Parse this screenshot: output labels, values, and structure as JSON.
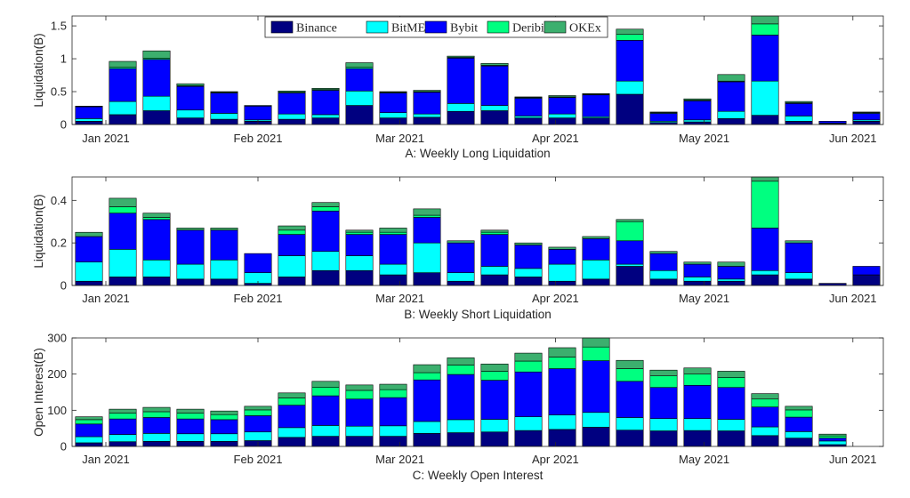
{
  "figure": {
    "ylabel": "Liquidation(B)",
    "legend": [
      "Binance",
      "BitMEX",
      "Bybit",
      "Deribit",
      "OKEx"
    ]
  },
  "colors": {
    "Binance": "#000080",
    "BitMEX": "#00ffff",
    "Bybit": "#0000ff",
    "Deribit": "#00ff80",
    "OKEx": "#3caf6e"
  },
  "chart_data": [
    {
      "type": "bar",
      "stacked": true,
      "title": "A: Weekly  Long Liquidation",
      "ylabel": "Liquidation(B)",
      "ylim": [
        0,
        1.65
      ],
      "yticks": [
        0,
        0.5,
        1,
        1.5
      ],
      "ytick_labels": [
        "0",
        "0.5",
        "1",
        "1.5"
      ],
      "xtick_labels": [
        "Jan 2021",
        "Feb 2021",
        "Mar 2021",
        "Apr 2021",
        "May 2021",
        "Jun 2021"
      ],
      "xtick_positions": [
        1.5,
        6.0,
        10.2,
        14.8,
        19.2,
        23.6
      ],
      "legend": [
        "Binance",
        "BitMEX",
        "Bybit",
        "Deribit",
        "OKEx"
      ],
      "legend_location": "top-center",
      "grid": false,
      "x": [
        1,
        2,
        3,
        4,
        5,
        6,
        7,
        8,
        9,
        10,
        11,
        12,
        13,
        14,
        15,
        16,
        17,
        18,
        19,
        20,
        21,
        22,
        23,
        24
      ],
      "series": [
        {
          "name": "Binance",
          "values": [
            0.05,
            0.15,
            0.21,
            0.1,
            0.08,
            0.05,
            0.08,
            0.1,
            0.29,
            0.1,
            0.11,
            0.2,
            0.21,
            0.1,
            0.1,
            0.1,
            0.46,
            0.03,
            0.04,
            0.09,
            0.14,
            0.05,
            0.01,
            0.05
          ]
        },
        {
          "name": "BitMEX",
          "values": [
            0.04,
            0.2,
            0.22,
            0.12,
            0.09,
            0.02,
            0.08,
            0.05,
            0.22,
            0.08,
            0.05,
            0.12,
            0.08,
            0.03,
            0.06,
            0.02,
            0.2,
            0.02,
            0.03,
            0.11,
            0.52,
            0.08,
            0.01,
            0.02
          ]
        },
        {
          "name": "Bybit",
          "values": [
            0.18,
            0.5,
            0.56,
            0.36,
            0.31,
            0.21,
            0.32,
            0.37,
            0.34,
            0.3,
            0.33,
            0.69,
            0.6,
            0.27,
            0.25,
            0.33,
            0.62,
            0.12,
            0.29,
            0.45,
            0.7,
            0.19,
            0.03,
            0.1
          ]
        },
        {
          "name": "Deribit",
          "values": [
            0.0,
            0.02,
            0.02,
            0.01,
            0.01,
            0.0,
            0.01,
            0.01,
            0.02,
            0.01,
            0.01,
            0.01,
            0.01,
            0.01,
            0.01,
            0.01,
            0.09,
            0.01,
            0.01,
            0.01,
            0.17,
            0.01,
            0.0,
            0.01
          ]
        },
        {
          "name": "OKEx",
          "values": [
            0.01,
            0.09,
            0.11,
            0.03,
            0.01,
            0.01,
            0.02,
            0.02,
            0.07,
            0.01,
            0.02,
            0.02,
            0.03,
            0.01,
            0.02,
            0.01,
            0.08,
            0.01,
            0.02,
            0.1,
            0.2,
            0.02,
            0.0,
            0.01
          ]
        }
      ]
    },
    {
      "type": "bar",
      "stacked": true,
      "title": "B: Weekly  Short Liquidation",
      "ylabel": "Liquidation(B)",
      "ylim": [
        0,
        0.51
      ],
      "yticks": [
        0,
        0.2,
        0.4
      ],
      "ytick_labels": [
        "0",
        "0.2",
        "0.4"
      ],
      "xtick_labels": [
        "Jan 2021",
        "Feb 2021",
        "Mar 2021",
        "Apr 2021",
        "May 2021",
        "Jun 2021"
      ],
      "xtick_positions": [
        1.5,
        6.0,
        10.2,
        14.8,
        19.2,
        23.6
      ],
      "grid": false,
      "x": [
        1,
        2,
        3,
        4,
        5,
        6,
        7,
        8,
        9,
        10,
        11,
        12,
        13,
        14,
        15,
        16,
        17,
        18,
        19,
        20,
        21,
        22,
        23,
        24
      ],
      "series": [
        {
          "name": "Binance",
          "values": [
            0.02,
            0.04,
            0.04,
            0.03,
            0.03,
            0.01,
            0.04,
            0.07,
            0.07,
            0.05,
            0.06,
            0.02,
            0.05,
            0.04,
            0.02,
            0.03,
            0.09,
            0.03,
            0.02,
            0.02,
            0.05,
            0.03,
            0.01,
            0.05
          ]
        },
        {
          "name": "BitMEX",
          "values": [
            0.09,
            0.13,
            0.08,
            0.07,
            0.09,
            0.05,
            0.1,
            0.09,
            0.07,
            0.05,
            0.14,
            0.04,
            0.04,
            0.04,
            0.08,
            0.09,
            0.01,
            0.04,
            0.02,
            0.01,
            0.02,
            0.03,
            0.0,
            0.0
          ]
        },
        {
          "name": "Bybit",
          "values": [
            0.12,
            0.17,
            0.19,
            0.16,
            0.14,
            0.09,
            0.1,
            0.19,
            0.1,
            0.14,
            0.12,
            0.14,
            0.15,
            0.11,
            0.07,
            0.1,
            0.11,
            0.08,
            0.06,
            0.06,
            0.2,
            0.14,
            0.0,
            0.04
          ]
        },
        {
          "name": "Deribit",
          "values": [
            0.0,
            0.03,
            0.01,
            0.0,
            0.0,
            0.0,
            0.02,
            0.02,
            0.01,
            0.01,
            0.01,
            0.0,
            0.01,
            0.0,
            0.0,
            0.0,
            0.09,
            0.0,
            0.0,
            0.0,
            0.22,
            0.0,
            0.0,
            0.0
          ]
        },
        {
          "name": "OKEx",
          "values": [
            0.02,
            0.04,
            0.02,
            0.01,
            0.01,
            0.0,
            0.02,
            0.02,
            0.01,
            0.02,
            0.03,
            0.01,
            0.01,
            0.01,
            0.01,
            0.01,
            0.01,
            0.01,
            0.01,
            0.02,
            0.05,
            0.01,
            0.0,
            0.0
          ]
        }
      ]
    },
    {
      "type": "bar",
      "stacked": true,
      "title": "C: Weekly  Open Interest",
      "ylabel": "Open Interest(B)",
      "ylim": [
        0,
        300
      ],
      "yticks": [
        0,
        100,
        200,
        300
      ],
      "ytick_labels": [
        "0",
        "100",
        "200",
        "300"
      ],
      "xtick_labels": [
        "Jan 2021",
        "Feb 2021",
        "Mar 2021",
        "Apr 2021",
        "May 2021",
        "Jun 2021"
      ],
      "xtick_positions": [
        1.5,
        6.0,
        10.2,
        14.8,
        19.2,
        23.6
      ],
      "grid": false,
      "x": [
        1,
        2,
        3,
        4,
        5,
        6,
        7,
        8,
        9,
        10,
        11,
        12,
        13,
        14,
        15,
        16,
        17,
        18,
        19,
        20,
        21,
        22,
        23,
        24
      ],
      "series": [
        {
          "name": "Binance",
          "values": [
            10,
            13,
            14,
            14,
            14,
            16,
            25,
            28,
            28,
            28,
            36,
            38,
            40,
            44,
            47,
            53,
            45,
            43,
            44,
            43,
            30,
            23,
            5,
            0
          ]
        },
        {
          "name": "BitMEX",
          "values": [
            17,
            20,
            22,
            21,
            21,
            24,
            27,
            30,
            28,
            29,
            33,
            36,
            35,
            38,
            40,
            41,
            35,
            34,
            33,
            32,
            24,
            18,
            10,
            0
          ]
        },
        {
          "name": "Bybit",
          "values": [
            35,
            43,
            44,
            41,
            39,
            45,
            62,
            82,
            75,
            78,
            115,
            125,
            108,
            124,
            128,
            143,
            100,
            86,
            92,
            88,
            55,
            40,
            8,
            0
          ]
        },
        {
          "name": "Deribit",
          "values": [
            12,
            16,
            16,
            16,
            14,
            16,
            20,
            24,
            24,
            22,
            20,
            26,
            25,
            30,
            32,
            38,
            35,
            32,
            31,
            28,
            22,
            20,
            6,
            0
          ]
        },
        {
          "name": "OKEx",
          "values": [
            8,
            11,
            12,
            11,
            10,
            10,
            14,
            16,
            15,
            15,
            22,
            20,
            20,
            22,
            26,
            30,
            23,
            16,
            17,
            17,
            15,
            10,
            5,
            0
          ]
        }
      ]
    }
  ]
}
